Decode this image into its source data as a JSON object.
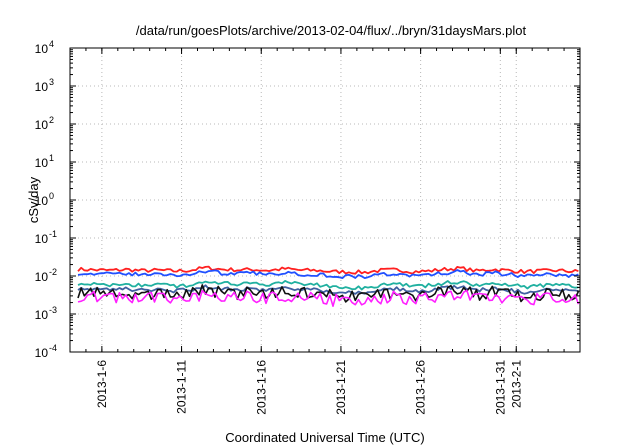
{
  "chart_data": {
    "type": "line",
    "title": "/data/run/goesPlots/archive/2013-02-04/flux/../bryn/31daysMars.plot",
    "xlabel": "Coordinated Universal Time (UTC)",
    "ylabel": "cSv/day",
    "y_scale": "log",
    "ylim": [
      0.0001,
      10000
    ],
    "y_ticks": [
      {
        "base": "10",
        "exp": "-4"
      },
      {
        "base": "10",
        "exp": "-3"
      },
      {
        "base": "10",
        "exp": "-2"
      },
      {
        "base": "10",
        "exp": "-1"
      },
      {
        "base": "10",
        "exp": "0"
      },
      {
        "base": "10",
        "exp": "1"
      },
      {
        "base": "10",
        "exp": "2"
      },
      {
        "base": "10",
        "exp": "3"
      },
      {
        "base": "10",
        "exp": "4"
      }
    ],
    "xlim": [
      "2013-01-04",
      "2013-02-05"
    ],
    "x_ticks": [
      "2013-1-6",
      "2013-1-11",
      "2013-1-16",
      "2013-1-21",
      "2013-1-26",
      "2013-1-31",
      "2013-2-1"
    ],
    "x_tick_days": [
      2,
      7,
      12,
      17,
      22,
      27,
      28
    ],
    "grid": true,
    "series": [
      {
        "color": "#ff2020",
        "values": [
          0.015,
          0.0145,
          0.014,
          0.0148,
          0.0138,
          0.0142,
          0.0135,
          0.014,
          0.0165,
          0.015,
          0.0145,
          0.0148,
          0.014,
          0.0155,
          0.0142,
          0.014,
          0.013,
          0.0128,
          0.0125,
          0.014,
          0.0145,
          0.013,
          0.0135,
          0.015,
          0.016,
          0.0135,
          0.015,
          0.014,
          0.013,
          0.0135,
          0.014,
          0.0132
        ]
      },
      {
        "color": "#2050ff",
        "values": [
          0.012,
          0.0115,
          0.011,
          0.0118,
          0.0108,
          0.0112,
          0.0105,
          0.011,
          0.0135,
          0.012,
          0.0115,
          0.0118,
          0.011,
          0.0125,
          0.0112,
          0.011,
          0.01,
          0.0098,
          0.0095,
          0.011,
          0.0115,
          0.01,
          0.0105,
          0.012,
          0.013,
          0.0105,
          0.012,
          0.011,
          0.01,
          0.0105,
          0.011,
          0.0102
        ]
      },
      {
        "color": "#20b0a0",
        "values": [
          0.0065,
          0.006,
          0.0058,
          0.0062,
          0.0055,
          0.006,
          0.0054,
          0.0058,
          0.0072,
          0.0064,
          0.006,
          0.0062,
          0.0057,
          0.0068,
          0.006,
          0.0058,
          0.0052,
          0.005,
          0.0049,
          0.0058,
          0.0062,
          0.0052,
          0.0056,
          0.0065,
          0.007,
          0.0055,
          0.0064,
          0.0058,
          0.0052,
          0.0055,
          0.0058,
          0.0054
        ]
      },
      {
        "color": "#4060a0",
        "values": [
          0.0048,
          0.0045,
          0.0043,
          0.0046,
          0.0041,
          0.0044,
          0.004,
          0.0043,
          0.0053,
          0.0047,
          0.0044,
          0.0046,
          0.0042,
          0.005,
          0.0044,
          0.0043,
          0.0039,
          0.0037,
          0.0036,
          0.0043,
          0.0046,
          0.0038,
          0.0041,
          0.0048,
          0.0052,
          0.0041,
          0.0047,
          0.0043,
          0.0038,
          0.0041,
          0.0043,
          0.004
        ]
      },
      {
        "color": "#101010",
        "values": [
          0.0038,
          0.0035,
          0.0034,
          0.0036,
          0.0032,
          0.0035,
          0.0031,
          0.0034,
          0.0042,
          0.0037,
          0.0035,
          0.0036,
          0.0033,
          0.004,
          0.0035,
          0.0034,
          0.003,
          0.0029,
          0.0028,
          0.0034,
          0.0036,
          0.003,
          0.0032,
          0.0038,
          0.0041,
          0.0032,
          0.0037,
          0.0034,
          0.003,
          0.0032,
          0.0034,
          0.0031
        ]
      },
      {
        "color": "#ff20ff",
        "values": [
          0.003,
          0.0028,
          0.0026,
          0.0028,
          0.0025,
          0.0027,
          0.0024,
          0.0026,
          0.0033,
          0.0029,
          0.0027,
          0.0028,
          0.0025,
          0.0031,
          0.0027,
          0.0026,
          0.0023,
          0.0022,
          0.0021,
          0.0026,
          0.0028,
          0.0023,
          0.0025,
          0.003,
          0.0032,
          0.0025,
          0.0029,
          0.0026,
          0.0023,
          0.0025,
          0.0026,
          0.0024
        ]
      }
    ]
  }
}
